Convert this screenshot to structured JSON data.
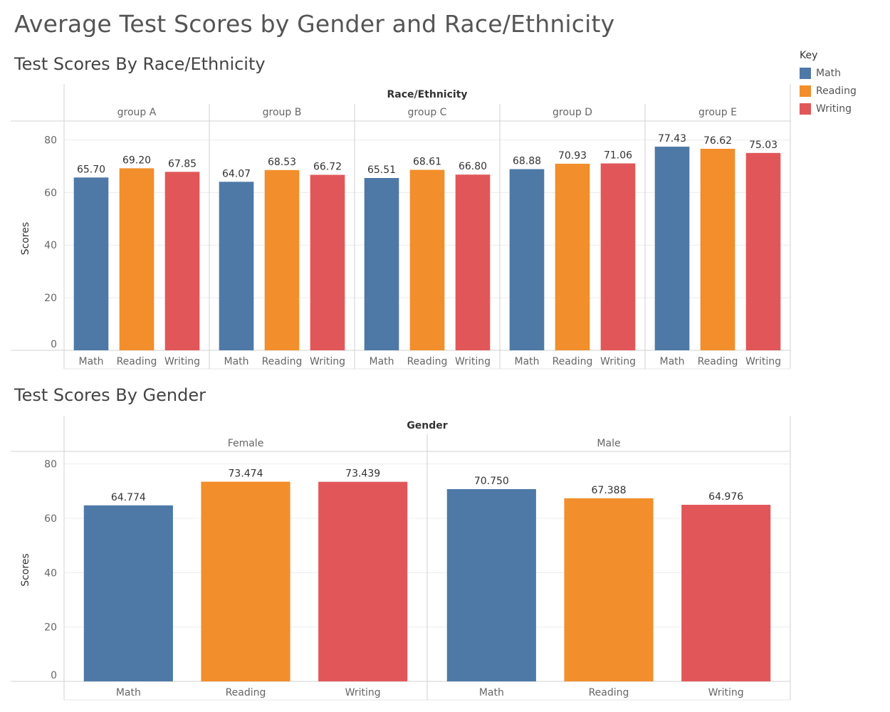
{
  "dashboard_title": "Average Test Scores by Gender and Race/Ethnicity",
  "legend": {
    "title": "Key",
    "items": [
      {
        "label": "Math",
        "color": "#4e79a7"
      },
      {
        "label": "Reading",
        "color": "#f28e2b"
      },
      {
        "label": "Writing",
        "color": "#e15759"
      }
    ]
  },
  "chart_data": [
    {
      "type": "bar",
      "title": "Test Scores By Race/Ethnicity",
      "column_header": "Race/Ethnicity",
      "ylabel": "Scores",
      "ylim": [
        0,
        85
      ],
      "yticks": [
        0,
        20,
        40,
        60,
        80
      ],
      "value_decimals": 2,
      "categories": [
        "Math",
        "Reading",
        "Writing"
      ],
      "groups": [
        {
          "name": "group A",
          "values": [
            65.7,
            69.2,
            67.85
          ]
        },
        {
          "name": "group B",
          "values": [
            64.07,
            68.53,
            66.72
          ]
        },
        {
          "name": "group C",
          "values": [
            65.51,
            68.61,
            66.8
          ]
        },
        {
          "name": "group D",
          "values": [
            68.88,
            70.93,
            71.06
          ]
        },
        {
          "name": "group E",
          "values": [
            77.43,
            76.62,
            75.03
          ]
        }
      ]
    },
    {
      "type": "bar",
      "title": "Test Scores By Gender",
      "column_header": "Gender",
      "ylabel": "Scores",
      "ylim": [
        0,
        82
      ],
      "yticks": [
        0,
        20,
        40,
        60,
        80
      ],
      "value_decimals": 3,
      "categories": [
        "Math",
        "Reading",
        "Writing"
      ],
      "groups": [
        {
          "name": "Female",
          "values": [
            64.774,
            73.474,
            73.439
          ]
        },
        {
          "name": "Male",
          "values": [
            70.75,
            67.388,
            64.976
          ]
        }
      ]
    }
  ]
}
